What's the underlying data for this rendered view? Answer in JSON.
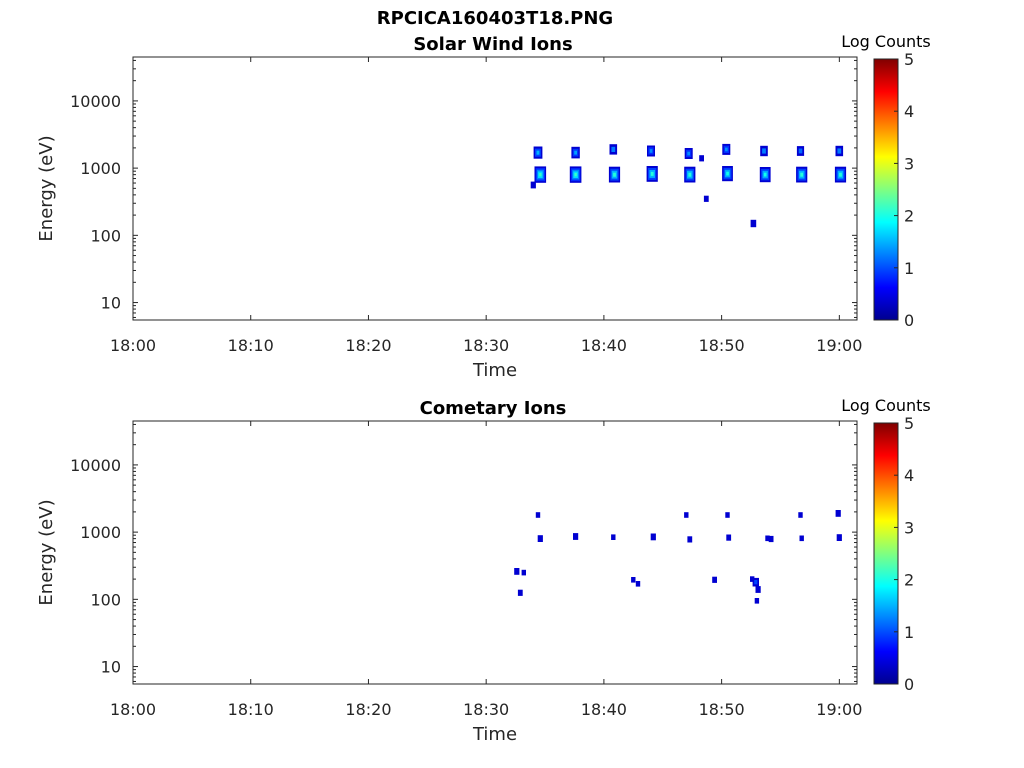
{
  "figure": {
    "title": "RPCICA160403T18.PNG",
    "colorbar_label": "Log Counts",
    "colorbar_ticks": [
      "0",
      "1",
      "2",
      "3",
      "4",
      "5"
    ],
    "colormap": [
      "#00008f",
      "#0000ff",
      "#0080ff",
      "#00ffff",
      "#80ff80",
      "#ffff00",
      "#ff8000",
      "#ff0000",
      "#800000"
    ]
  },
  "chart_data": [
    {
      "type": "heatmap",
      "title": "Solar Wind Ions",
      "xlabel": "Time",
      "ylabel": "Energy (eV)",
      "x_ticks": [
        "18:00",
        "18:10",
        "18:20",
        "18:30",
        "18:40",
        "18:50",
        "19:00"
      ],
      "x_range_min": [
        0,
        61.5
      ],
      "y_scale": "log",
      "y_range": [
        5.5,
        45000
      ],
      "y_ticks": [
        {
          "value": 10,
          "label": "10"
        },
        {
          "value": 100,
          "label": "100"
        },
        {
          "value": 1000,
          "label": "1000"
        },
        {
          "value": 10000,
          "label": "10000"
        }
      ],
      "colorbar_range": [
        0,
        5
      ],
      "blobs": [
        {
          "t": 34.4,
          "e": 1700,
          "c": 1.2
        },
        {
          "t": 34.6,
          "e": 800,
          "c": 1.9
        },
        {
          "t": 34.0,
          "e": 560,
          "c": 0.3
        },
        {
          "t": 37.6,
          "e": 1700,
          "c": 1.1
        },
        {
          "t": 37.6,
          "e": 800,
          "c": 1.9
        },
        {
          "t": 40.8,
          "e": 1900,
          "c": 0.9
        },
        {
          "t": 40.9,
          "e": 800,
          "c": 1.8
        },
        {
          "t": 44.0,
          "e": 1800,
          "c": 1.0
        },
        {
          "t": 44.1,
          "e": 820,
          "c": 1.8
        },
        {
          "t": 47.2,
          "e": 1650,
          "c": 1.0
        },
        {
          "t": 47.3,
          "e": 800,
          "c": 1.8
        },
        {
          "t": 48.3,
          "e": 1400,
          "c": 0.2
        },
        {
          "t": 48.7,
          "e": 350,
          "c": 0.2
        },
        {
          "t": 50.4,
          "e": 1900,
          "c": 1.0
        },
        {
          "t": 50.5,
          "e": 830,
          "c": 1.7
        },
        {
          "t": 52.7,
          "e": 150,
          "c": 0.4
        },
        {
          "t": 53.6,
          "e": 1800,
          "c": 0.9
        },
        {
          "t": 53.7,
          "e": 800,
          "c": 1.7
        },
        {
          "t": 56.7,
          "e": 1800,
          "c": 0.8
        },
        {
          "t": 56.8,
          "e": 800,
          "c": 1.8
        },
        {
          "t": 60.0,
          "e": 1800,
          "c": 0.9
        },
        {
          "t": 60.1,
          "e": 800,
          "c": 1.8
        }
      ]
    },
    {
      "type": "heatmap",
      "title": "Cometary Ions",
      "xlabel": "Time",
      "ylabel": "Energy (eV)",
      "x_ticks": [
        "18:00",
        "18:10",
        "18:20",
        "18:30",
        "18:40",
        "18:50",
        "19:00"
      ],
      "x_range_min": [
        0,
        61.5
      ],
      "y_scale": "log",
      "y_range": [
        5.5,
        45000
      ],
      "y_ticks": [
        {
          "value": 10,
          "label": "10"
        },
        {
          "value": 100,
          "label": "100"
        },
        {
          "value": 1000,
          "label": "1000"
        },
        {
          "value": 10000,
          "label": "10000"
        }
      ],
      "colorbar_range": [
        0,
        5
      ],
      "blobs": [
        {
          "t": 32.6,
          "e": 260,
          "c": 0.3
        },
        {
          "t": 32.9,
          "e": 125,
          "c": 0.2
        },
        {
          "t": 33.2,
          "e": 250,
          "c": 0.1
        },
        {
          "t": 34.4,
          "e": 1800,
          "c": 0.1
        },
        {
          "t": 34.6,
          "e": 800,
          "c": 0.3
        },
        {
          "t": 37.6,
          "e": 860,
          "c": 0.3
        },
        {
          "t": 40.8,
          "e": 840,
          "c": 0.1
        },
        {
          "t": 42.5,
          "e": 195,
          "c": 0.1
        },
        {
          "t": 42.9,
          "e": 170,
          "c": 0.1
        },
        {
          "t": 44.2,
          "e": 850,
          "c": 0.3
        },
        {
          "t": 47.0,
          "e": 1800,
          "c": 0.1
        },
        {
          "t": 47.3,
          "e": 780,
          "c": 0.2
        },
        {
          "t": 49.4,
          "e": 195,
          "c": 0.2
        },
        {
          "t": 50.5,
          "e": 1800,
          "c": 0.1
        },
        {
          "t": 50.6,
          "e": 830,
          "c": 0.2
        },
        {
          "t": 52.6,
          "e": 200,
          "c": 0.1
        },
        {
          "t": 52.9,
          "e": 180,
          "c": 0.6
        },
        {
          "t": 53.1,
          "e": 140,
          "c": 0.3
        },
        {
          "t": 53.0,
          "e": 95,
          "c": 0.1
        },
        {
          "t": 53.9,
          "e": 810,
          "c": 0.1
        },
        {
          "t": 54.2,
          "e": 790,
          "c": 0.2
        },
        {
          "t": 56.7,
          "e": 1800,
          "c": 0.1
        },
        {
          "t": 56.8,
          "e": 810,
          "c": 0.1
        },
        {
          "t": 59.9,
          "e": 1900,
          "c": 0.3
        },
        {
          "t": 60.0,
          "e": 830,
          "c": 0.3
        }
      ]
    }
  ]
}
